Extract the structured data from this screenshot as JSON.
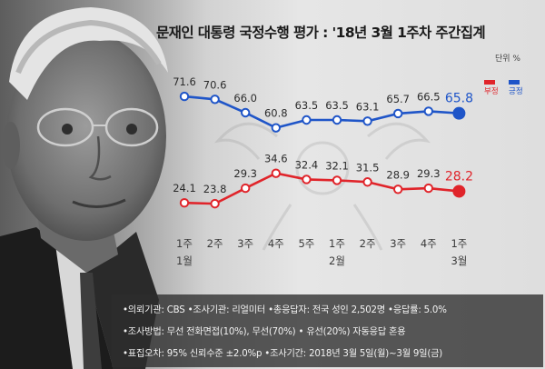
{
  "title": "문재인 대통령 국정수행 평가 : '18년 3월 1주차 주간집계",
  "unit_label": "단위 %",
  "colors": {
    "positive": "#1f55c8",
    "negative": "#e0242a"
  },
  "chart_data": {
    "type": "line",
    "title": "문재인 대통령 국정수행 평가 : '18년 3월 1주차 주간집계",
    "unit": "단위 %",
    "categories": [
      [
        "1주",
        "1월"
      ],
      [
        "2주",
        ""
      ],
      [
        "3주",
        ""
      ],
      [
        "4주",
        ""
      ],
      [
        "5주",
        ""
      ],
      [
        "1주",
        "2월"
      ],
      [
        "2주",
        ""
      ],
      [
        "3주",
        ""
      ],
      [
        "4주",
        ""
      ],
      [
        "1주",
        "3월"
      ]
    ],
    "legend": "top-right",
    "series": [
      {
        "name": "긍정",
        "color": "#1f55c8",
        "values": [
          71.6,
          70.6,
          66.0,
          60.8,
          63.5,
          63.5,
          63.1,
          65.7,
          66.5,
          65.8
        ],
        "labels": [
          "71.6",
          "70.6",
          "66.0",
          "60.8",
          "63.5",
          "63.5",
          "63.1",
          "65.7",
          "66.5",
          "65.8"
        ]
      },
      {
        "name": "부정",
        "color": "#e0242a",
        "values": [
          24.1,
          23.8,
          29.3,
          34.6,
          32.4,
          32.1,
          31.5,
          28.9,
          29.3,
          28.2
        ],
        "labels": [
          "24.1",
          "23.8",
          "29.3",
          "34.6",
          "32.4",
          "32.1",
          "31.5",
          "28.9",
          "29.3",
          "28.2"
        ]
      }
    ]
  },
  "footer": {
    "lines": [
      "•의뢰기관: CBS  •조사기관: 리얼미터  •총응답자: 전국 성인 2,502명  •응답률: 5.0%",
      "•조사방법: 무선 전화면접(10%), 무선(70%) • 유선(20%) 자동응답 혼용",
      "•표집오차: 95% 신뢰수준 ±2.0%p  •조사기간: 2018년 3월 5일(월)~3월 9일(금)"
    ]
  }
}
